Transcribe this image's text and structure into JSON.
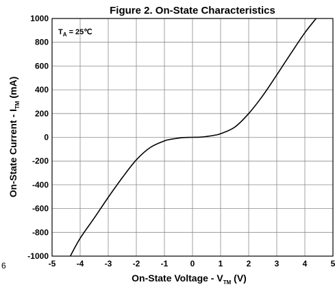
{
  "chart_data": {
    "type": "line",
    "title": "Figure 2. On-State Characteristics",
    "xlabel": {
      "main": "On-State Voltage - V",
      "sub": "TM",
      "unit": " (V)"
    },
    "ylabel": {
      "main": "On-State Current - I",
      "sub": "TM",
      "unit": " (mA)"
    },
    "annotation": {
      "main": "T",
      "sub": "A",
      "rest": " = 25℃"
    },
    "stray_label": "6",
    "xlim": [
      -5,
      5
    ],
    "ylim": [
      -1000,
      1000
    ],
    "x_ticks": [
      -5,
      -4,
      -3,
      -2,
      -1,
      0,
      1,
      2,
      3,
      4,
      5
    ],
    "x_tick_labels": [
      "-5",
      "-4",
      "-3",
      "-2",
      "-1",
      "0",
      "1",
      "2",
      "3",
      "4",
      "5"
    ],
    "y_ticks": [
      1000,
      800,
      600,
      400,
      200,
      0,
      -200,
      -400,
      -600,
      -800,
      -1000
    ],
    "y_tick_labels": [
      "1000",
      "800",
      "600",
      "400",
      "200",
      "0",
      "-200",
      "-400",
      "-600",
      "-800",
      "-1000"
    ],
    "grid": true,
    "series": [
      {
        "color": "#000000",
        "x": [
          -4.35,
          -4.0,
          -3.5,
          -3.0,
          -2.5,
          -2.0,
          -1.5,
          -1.0,
          -0.8,
          -0.5,
          -0.3,
          0.0,
          0.3,
          0.5,
          0.8,
          1.0,
          1.5,
          2.0,
          2.5,
          3.0,
          3.5,
          4.0,
          4.4
        ],
        "y": [
          -1000,
          -850,
          -680,
          -505,
          -340,
          -190,
          -85,
          -30,
          -18,
          -7,
          -2,
          0,
          2,
          7,
          18,
          30,
          85,
          200,
          350,
          525,
          705,
          880,
          1000
        ]
      }
    ]
  }
}
